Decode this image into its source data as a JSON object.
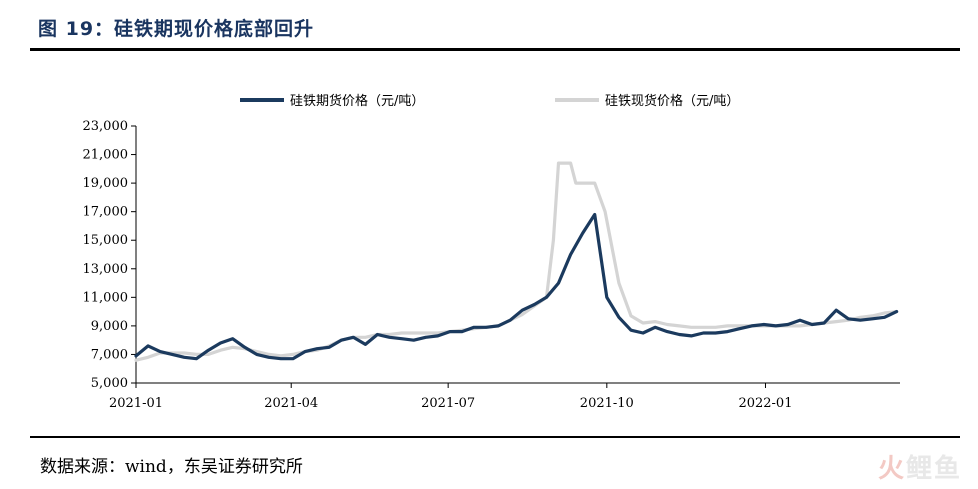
{
  "figure": {
    "title": "图 19：硅铁期现价格底部回升",
    "source": "数据来源：wind，东吴证券研究所",
    "watermark": [
      "火",
      "鲤",
      "鱼"
    ]
  },
  "colors": {
    "futures": "#1b3a5e",
    "spot": "#d4d4d4",
    "axis": "#000000",
    "title": "#1a3560"
  },
  "chart_data": {
    "type": "line",
    "title": "",
    "xlabel": "",
    "ylabel": "",
    "ylim": [
      5000,
      23000
    ],
    "yticks": [
      5000,
      7000,
      9000,
      11000,
      13000,
      15000,
      17000,
      19000,
      21000,
      23000
    ],
    "ytick_labels": [
      "5,000",
      "7,000",
      "9,000",
      "11,000",
      "13,000",
      "15,000",
      "17,000",
      "19,000",
      "21,000",
      "23,000"
    ],
    "xlim": [
      "2021-01-01",
      "2022-03-20"
    ],
    "xticks": [
      "2021-01-01",
      "2021-04-01",
      "2021-07-01",
      "2021-10-01",
      "2022-01-01"
    ],
    "xtick_labels": [
      "2021-01",
      "2021-04",
      "2021-07",
      "2021-10",
      "2022-01"
    ],
    "grid": false,
    "legend": "top",
    "series": [
      {
        "name": "硅铁期货价格（元/吨）",
        "x": [
          "2021-01-01",
          "2021-01-08",
          "2021-01-15",
          "2021-01-22",
          "2021-01-29",
          "2021-02-05",
          "2021-02-12",
          "2021-02-19",
          "2021-02-26",
          "2021-03-05",
          "2021-03-12",
          "2021-03-19",
          "2021-03-26",
          "2021-04-02",
          "2021-04-09",
          "2021-04-16",
          "2021-04-23",
          "2021-04-30",
          "2021-05-07",
          "2021-05-14",
          "2021-05-21",
          "2021-05-28",
          "2021-06-04",
          "2021-06-11",
          "2021-06-18",
          "2021-06-25",
          "2021-07-02",
          "2021-07-09",
          "2021-07-16",
          "2021-07-23",
          "2021-07-30",
          "2021-08-06",
          "2021-08-13",
          "2021-08-20",
          "2021-08-27",
          "2021-09-03",
          "2021-09-10",
          "2021-09-17",
          "2021-09-24",
          "2021-10-01",
          "2021-10-08",
          "2021-10-15",
          "2021-10-22",
          "2021-10-29",
          "2021-11-05",
          "2021-11-12",
          "2021-11-19",
          "2021-11-26",
          "2021-12-03",
          "2021-12-10",
          "2021-12-17",
          "2021-12-24",
          "2021-12-31",
          "2022-01-07",
          "2022-01-14",
          "2022-01-21",
          "2022-01-28",
          "2022-02-04",
          "2022-02-11",
          "2022-02-18",
          "2022-02-25",
          "2022-03-04",
          "2022-03-11",
          "2022-03-18"
        ],
        "values": [
          6900,
          7600,
          7200,
          7000,
          6800,
          6700,
          7300,
          7800,
          8100,
          7500,
          7000,
          6800,
          6700,
          6700,
          7200,
          7400,
          7500,
          8000,
          8200,
          7700,
          8400,
          8200,
          8100,
          8000,
          8200,
          8300,
          8600,
          8600,
          8900,
          8900,
          9000,
          9400,
          10100,
          10500,
          11000,
          12000,
          14000,
          15500,
          16800,
          11000,
          9600,
          8700,
          8500,
          8900,
          8600,
          8400,
          8300,
          8500,
          8500,
          8600,
          8800,
          9000,
          9100,
          9000,
          9100,
          9400,
          9100,
          9200,
          10100,
          9500,
          9400,
          9500,
          9600,
          10000
        ]
      },
      {
        "name": "硅铁现货价格（元/吨）",
        "x": [
          "2021-01-01",
          "2021-01-08",
          "2021-01-15",
          "2021-01-22",
          "2021-01-29",
          "2021-02-05",
          "2021-02-12",
          "2021-02-19",
          "2021-02-26",
          "2021-03-05",
          "2021-03-12",
          "2021-03-19",
          "2021-03-26",
          "2021-04-02",
          "2021-04-09",
          "2021-04-16",
          "2021-04-23",
          "2021-04-30",
          "2021-05-07",
          "2021-05-14",
          "2021-05-21",
          "2021-05-28",
          "2021-06-04",
          "2021-06-11",
          "2021-06-18",
          "2021-06-25",
          "2021-07-02",
          "2021-07-09",
          "2021-07-16",
          "2021-07-23",
          "2021-07-30",
          "2021-08-06",
          "2021-08-13",
          "2021-08-20",
          "2021-08-27",
          "2021-08-31",
          "2021-09-03",
          "2021-09-10",
          "2021-09-13",
          "2021-09-17",
          "2021-09-24",
          "2021-09-30",
          "2021-10-08",
          "2021-10-15",
          "2021-10-22",
          "2021-10-29",
          "2021-11-05",
          "2021-11-12",
          "2021-11-19",
          "2021-11-26",
          "2021-12-03",
          "2021-12-10",
          "2021-12-17",
          "2021-12-24",
          "2021-12-31",
          "2022-01-07",
          "2022-01-14",
          "2022-01-21",
          "2022-01-28",
          "2022-02-04",
          "2022-02-11",
          "2022-02-18",
          "2022-02-25",
          "2022-03-04",
          "2022-03-11",
          "2022-03-18"
        ],
        "values": [
          6600,
          6800,
          7100,
          7100,
          7100,
          7000,
          7000,
          7300,
          7500,
          7400,
          7200,
          7000,
          6900,
          7000,
          7200,
          7300,
          7600,
          8000,
          8200,
          8200,
          8400,
          8400,
          8500,
          8500,
          8500,
          8500,
          8600,
          8700,
          8800,
          8900,
          9000,
          9400,
          9800,
          10400,
          11000,
          15000,
          20400,
          20400,
          19000,
          19000,
          19000,
          17000,
          12000,
          9700,
          9200,
          9300,
          9100,
          9000,
          8900,
          8900,
          8900,
          9000,
          9000,
          9000,
          9000,
          9000,
          9000,
          9000,
          9100,
          9200,
          9300,
          9400,
          9600,
          9700,
          9900,
          10000
        ]
      }
    ]
  }
}
